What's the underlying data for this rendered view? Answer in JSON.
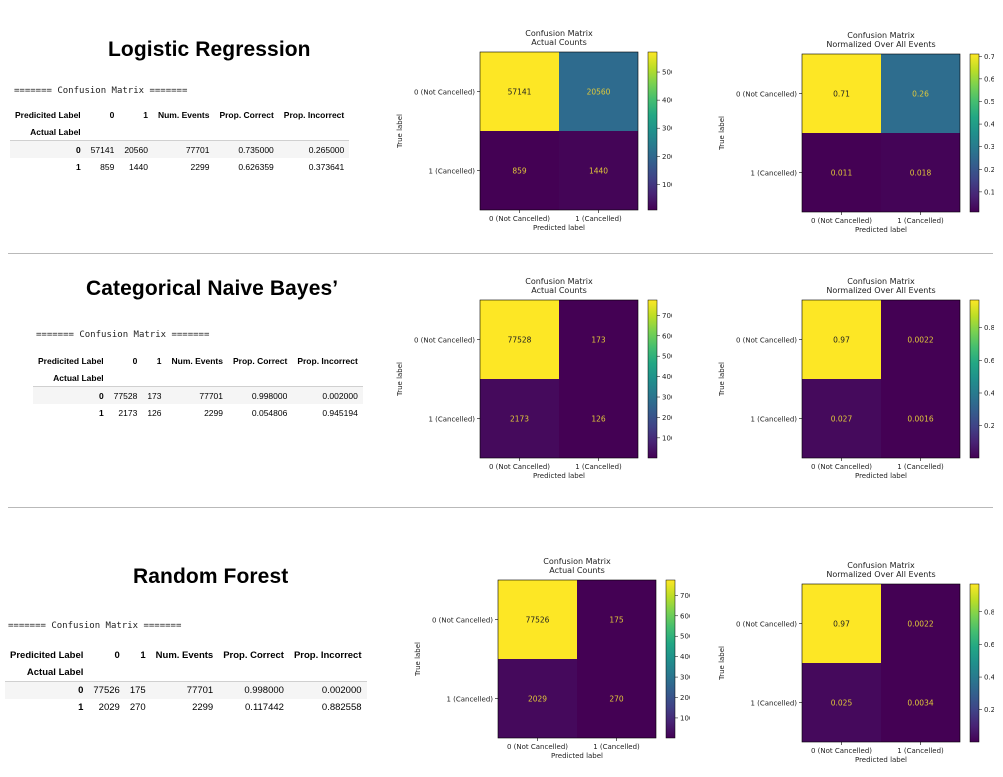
{
  "colors": {
    "viridis_low": "#440154",
    "viridis_high": "#fde725",
    "cell_text_dark": "#222222",
    "cell_text_light": "#e0c93a",
    "divider": "#b9b9b9"
  },
  "sections": [
    {
      "title": "Logistic Regression",
      "table": {
        "header_line": "======= Confusion Matrix =======",
        "columns": [
          "Predicited Label",
          "0",
          "1",
          "Num. Events",
          "Prop. Correct",
          "Prop. Incorrect"
        ],
        "index_label": "Actual Label",
        "rows": [
          [
            "0",
            "57141",
            "20560",
            "77701",
            "0.735000",
            "0.265000"
          ],
          [
            "1",
            "859",
            "1440",
            "2299",
            "0.626359",
            "0.373641"
          ]
        ]
      }
    },
    {
      "title": "Categorical Naive Bayes’",
      "table": {
        "header_line": "======= Confusion Matrix =======",
        "columns": [
          "Predicited Label",
          "0",
          "1",
          "Num. Events",
          "Prop. Correct",
          "Prop. Incorrect"
        ],
        "index_label": "Actual Label",
        "rows": [
          [
            "0",
            "77528",
            "173",
            "77701",
            "0.998000",
            "0.002000"
          ],
          [
            "1",
            "2173",
            "126",
            "2299",
            "0.054806",
            "0.945194"
          ]
        ]
      }
    },
    {
      "title": "Random Forest",
      "table": {
        "header_line": "======= Confusion Matrix =======",
        "columns": [
          "Predicited Label",
          "0",
          "1",
          "Num. Events",
          "Prop. Correct",
          "Prop. Incorrect"
        ],
        "index_label": "Actual Label",
        "rows": [
          [
            "0",
            "77526",
            "175",
            "77701",
            "0.998000",
            "0.002000"
          ],
          [
            "1",
            "2029",
            "270",
            "2299",
            "0.117442",
            "0.882558"
          ]
        ]
      }
    }
  ],
  "chart_data": [
    {
      "type": "heatmap",
      "title": "Confusion Matrix\nActual Counts",
      "xlabel": "Predicted label",
      "ylabel": "True label",
      "x_categories": [
        "0 (Not Cancelled)",
        "1 (Cancelled)"
      ],
      "y_categories": [
        "0 (Not Cancelled)",
        "1 (Cancelled)"
      ],
      "values": [
        [
          57141,
          20560
        ],
        [
          859,
          1440
        ]
      ],
      "labels": [
        [
          "57141",
          "20560"
        ],
        [
          "859",
          "1440"
        ]
      ],
      "colorbar_ticks": [
        10000,
        20000,
        30000,
        40000,
        50000
      ],
      "colorbar_tick_labels": [
        "10000",
        "20000",
        "30000",
        "40000",
        "50000"
      ]
    },
    {
      "type": "heatmap",
      "title": "Confusion Matrix\nNormalized Over All Events",
      "xlabel": "Predicted label",
      "ylabel": "True label",
      "x_categories": [
        "0 (Not Cancelled)",
        "1 (Cancelled)"
      ],
      "y_categories": [
        "0 (Not Cancelled)",
        "1 (Cancelled)"
      ],
      "values": [
        [
          0.71,
          0.26
        ],
        [
          0.011,
          0.018
        ]
      ],
      "labels": [
        [
          "0.71",
          "0.26"
        ],
        [
          "0.011",
          "0.018"
        ]
      ],
      "colorbar_ticks": [
        0.1,
        0.2,
        0.3,
        0.4,
        0.5,
        0.6,
        0.7
      ],
      "colorbar_tick_labels": [
        "0.1",
        "0.2",
        "0.3",
        "0.4",
        "0.5",
        "0.6",
        "0.7"
      ]
    },
    {
      "type": "heatmap",
      "title": "Confusion Matrix\nActual Counts",
      "xlabel": "Predicted label",
      "ylabel": "True label",
      "x_categories": [
        "0 (Not Cancelled)",
        "1 (Cancelled)"
      ],
      "y_categories": [
        "0 (Not Cancelled)",
        "1 (Cancelled)"
      ],
      "values": [
        [
          77528,
          173
        ],
        [
          2173,
          126
        ]
      ],
      "labels": [
        [
          "77528",
          "173"
        ],
        [
          "2173",
          "126"
        ]
      ],
      "colorbar_ticks": [
        10000,
        20000,
        30000,
        40000,
        50000,
        60000,
        70000
      ],
      "colorbar_tick_labels": [
        "10000",
        "20000",
        "30000",
        "40000",
        "50000",
        "60000",
        "70000"
      ]
    },
    {
      "type": "heatmap",
      "title": "Confusion Matrix\nNormalized Over All Events",
      "xlabel": "Predicted label",
      "ylabel": "True label",
      "x_categories": [
        "0 (Not Cancelled)",
        "1 (Cancelled)"
      ],
      "y_categories": [
        "0 (Not Cancelled)",
        "1 (Cancelled)"
      ],
      "values": [
        [
          0.97,
          0.0022
        ],
        [
          0.027,
          0.0016
        ]
      ],
      "labels": [
        [
          "0.97",
          "0.0022"
        ],
        [
          "0.027",
          "0.0016"
        ]
      ],
      "colorbar_ticks": [
        0.2,
        0.4,
        0.6,
        0.8
      ],
      "colorbar_tick_labels": [
        "0.2",
        "0.4",
        "0.6",
        "0.8"
      ]
    },
    {
      "type": "heatmap",
      "title": "Confusion Matrix\nActual Counts",
      "xlabel": "Predicted label",
      "ylabel": "True label",
      "x_categories": [
        "0 (Not Cancelled)",
        "1 (Cancelled)"
      ],
      "y_categories": [
        "0 (Not Cancelled)",
        "1 (Cancelled)"
      ],
      "values": [
        [
          77526,
          175
        ],
        [
          2029,
          270
        ]
      ],
      "labels": [
        [
          "77526",
          "175"
        ],
        [
          "2029",
          "270"
        ]
      ],
      "colorbar_ticks": [
        10000,
        20000,
        30000,
        40000,
        50000,
        60000,
        70000
      ],
      "colorbar_tick_labels": [
        "10000",
        "20000",
        "30000",
        "40000",
        "50000",
        "60000",
        "70000"
      ]
    },
    {
      "type": "heatmap",
      "title": "Confusion Matrix\nNormalized Over All Events",
      "xlabel": "Predicted label",
      "ylabel": "True label",
      "x_categories": [
        "0 (Not Cancelled)",
        "1 (Cancelled)"
      ],
      "y_categories": [
        "0 (Not Cancelled)",
        "1 (Cancelled)"
      ],
      "values": [
        [
          0.97,
          0.0022
        ],
        [
          0.025,
          0.0034
        ]
      ],
      "labels": [
        [
          "0.97",
          "0.0022"
        ],
        [
          "0.025",
          "0.0034"
        ]
      ],
      "colorbar_ticks": [
        0.2,
        0.4,
        0.6,
        0.8
      ],
      "colorbar_tick_labels": [
        "0.2",
        "0.4",
        "0.6",
        "0.8"
      ]
    }
  ]
}
